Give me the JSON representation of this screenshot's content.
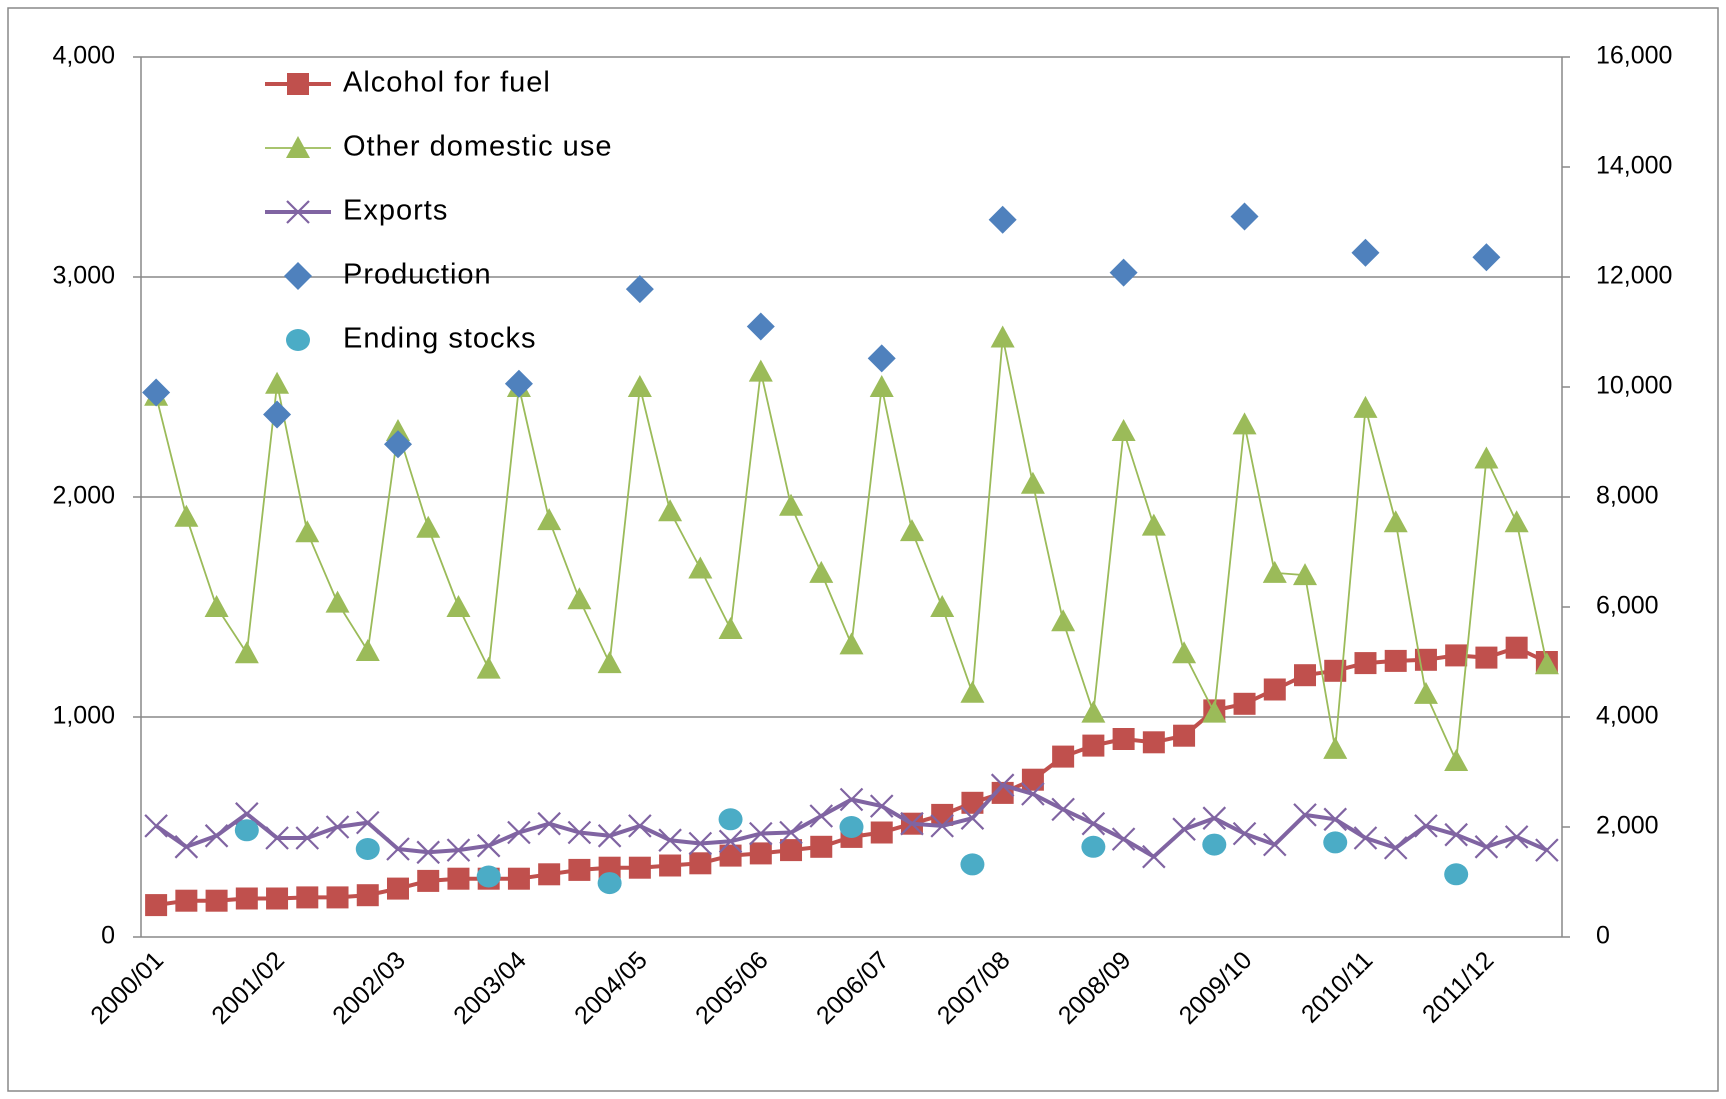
{
  "chart_data": {
    "type": "line",
    "categories": [
      "2000/01",
      null,
      null,
      null,
      "2001/02",
      null,
      null,
      null,
      "2002/03",
      null,
      null,
      null,
      "2003/04",
      null,
      null,
      null,
      "2004/05",
      null,
      null,
      null,
      "2005/06",
      null,
      null,
      null,
      "2006/07",
      null,
      null,
      null,
      "2007/08",
      null,
      null,
      null,
      "2008/09",
      null,
      null,
      null,
      "2009/10",
      null,
      null,
      null,
      "2010/11",
      null,
      null,
      null,
      "2011/12",
      null,
      null
    ],
    "ylim": [
      0,
      4000
    ],
    "yticks": [
      0,
      {
        "value": 1000,
        "label": "1,000"
      },
      {
        "value": 2000,
        "label": "2,000"
      },
      {
        "value": 3000,
        "label": "3,000"
      },
      {
        "value": 4000,
        "label": "4,000"
      }
    ],
    "y2lim": [
      0,
      16000
    ],
    "y2ticks": [
      0,
      {
        "value": 2000,
        "label": "2,000"
      },
      {
        "value": 4000,
        "label": "4,000"
      },
      {
        "value": 6000,
        "label": "6,000"
      },
      {
        "value": 8000,
        "label": "8,000"
      },
      {
        "value": 10000,
        "label": "10,000"
      },
      {
        "value": 12000,
        "label": "12,000"
      },
      {
        "value": 14000,
        "label": "14,000"
      },
      {
        "value": 16000,
        "label": "16,000"
      }
    ],
    "grid": true,
    "legend": "top-left",
    "series": [
      {
        "name": "Alcohol for fuel",
        "color": "#c0504d",
        "marker": "square",
        "line": true,
        "axis": "y",
        "values": [
          145,
          165,
          165,
          175,
          175,
          180,
          180,
          190,
          220,
          255,
          265,
          265,
          265,
          285,
          305,
          315,
          315,
          325,
          335,
          370,
          380,
          395,
          410,
          455,
          475,
          515,
          555,
          610,
          655,
          715,
          820,
          870,
          900,
          885,
          915,
          1030,
          1060,
          1125,
          1190,
          1210,
          1245,
          1255,
          1260,
          1280,
          1270,
          1315,
          1250
        ]
      },
      {
        "name": "Other domestic use",
        "color": "#9bbb59",
        "marker": "triangle",
        "line": true,
        "axis": "y",
        "values": [
          2460,
          1910,
          1500,
          1290,
          2515,
          1840,
          1520,
          1300,
          2300,
          1860,
          1500,
          1220,
          2500,
          1895,
          1535,
          1245,
          2500,
          1935,
          1675,
          1400,
          2570,
          1960,
          1655,
          1330,
          2500,
          1845,
          1500,
          1110,
          2725,
          2060,
          1435,
          1020,
          2300,
          1870,
          1290,
          1020,
          2330,
          1655,
          1645,
          855,
          2405,
          1885,
          1105,
          800,
          2175,
          1885,
          1240
        ]
      },
      {
        "name": "Exports",
        "color": "#8064a2",
        "marker": "x",
        "line": true,
        "axis": "y",
        "values": [
          505,
          410,
          460,
          560,
          450,
          450,
          500,
          520,
          400,
          385,
          395,
          415,
          475,
          515,
          475,
          460,
          505,
          440,
          425,
          435,
          470,
          475,
          550,
          625,
          595,
          515,
          505,
          540,
          690,
          650,
          580,
          515,
          445,
          365,
          490,
          540,
          470,
          420,
          555,
          535,
          450,
          405,
          505,
          465,
          410,
          455,
          395
        ]
      },
      {
        "name": "Production",
        "color": "#4f81bd",
        "marker": "diamond",
        "line": false,
        "axis": "y2",
        "values": [
          9900,
          null,
          null,
          null,
          9500,
          null,
          null,
          null,
          8960,
          null,
          null,
          null,
          10060,
          null,
          null,
          null,
          11780,
          null,
          null,
          null,
          11100,
          null,
          null,
          null,
          10520,
          null,
          null,
          null,
          13040,
          null,
          null,
          null,
          12080,
          null,
          null,
          null,
          13100,
          null,
          null,
          null,
          12440,
          null,
          null,
          null,
          12360,
          null,
          null
        ]
      },
      {
        "name": "Ending stocks",
        "color": "#4bacc6",
        "marker": "circle",
        "line": false,
        "axis": "y2",
        "values": [
          null,
          null,
          null,
          1940,
          null,
          null,
          null,
          1600,
          null,
          null,
          null,
          1100,
          null,
          null,
          null,
          980,
          null,
          null,
          null,
          2140,
          null,
          null,
          null,
          2000,
          null,
          null,
          null,
          1320,
          null,
          null,
          null,
          1640,
          null,
          null,
          null,
          1680,
          null,
          null,
          null,
          1720,
          null,
          null,
          null,
          1140,
          null,
          null,
          null
        ]
      }
    ]
  }
}
